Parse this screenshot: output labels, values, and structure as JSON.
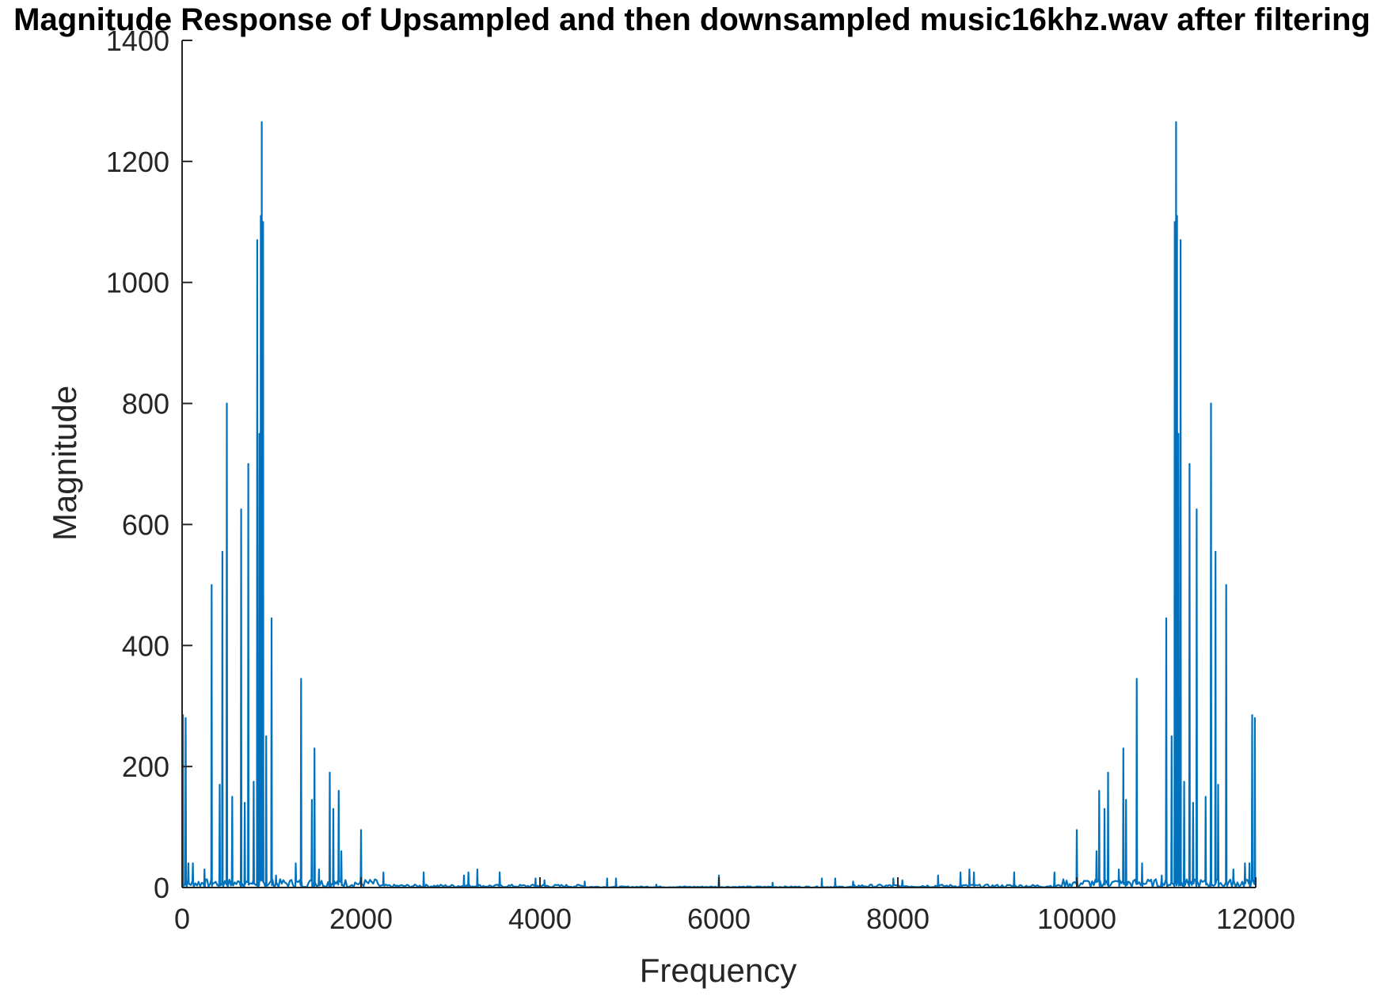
{
  "chart_data": {
    "type": "line",
    "title": "Magnitude Response of Upsampled and then downsampled music16khz.wav after filtering",
    "xlabel": "Frequency",
    "ylabel": "Magnitude",
    "xlim": [
      0,
      12000
    ],
    "ylim": [
      0,
      1400
    ],
    "xticks": [
      0,
      2000,
      4000,
      6000,
      8000,
      10000,
      12000
    ],
    "xtick_labels": [
      "0",
      "2000",
      "4000",
      "6000",
      "8000",
      "10000",
      "12000"
    ],
    "yticks": [
      0,
      200,
      400,
      600,
      800,
      1000,
      1200,
      1400
    ],
    "ytick_labels": [
      "0",
      "200",
      "400",
      "600",
      "800",
      "1000",
      "1200",
      "1400"
    ],
    "grid": false,
    "legend": "none",
    "line_color": "#0072BD",
    "axis_color": "#262626",
    "series": [
      {
        "peaks": [
          [
            10,
            285
          ],
          [
            40,
            280
          ],
          [
            70,
            40
          ],
          [
            120,
            40
          ],
          [
            250,
            30
          ],
          [
            330,
            500
          ],
          [
            420,
            170
          ],
          [
            450,
            555
          ],
          [
            500,
            800
          ],
          [
            560,
            150
          ],
          [
            660,
            625
          ],
          [
            700,
            140
          ],
          [
            740,
            700
          ],
          [
            800,
            175
          ],
          [
            840,
            1070
          ],
          [
            865,
            750
          ],
          [
            880,
            1110
          ],
          [
            890,
            1265
          ],
          [
            905,
            1100
          ],
          [
            940,
            250
          ],
          [
            1000,
            445
          ],
          [
            1050,
            20
          ],
          [
            1270,
            40
          ],
          [
            1330,
            345
          ],
          [
            1450,
            145
          ],
          [
            1480,
            230
          ],
          [
            1530,
            30
          ],
          [
            1650,
            190
          ],
          [
            1690,
            130
          ],
          [
            1750,
            160
          ],
          [
            1780,
            60
          ],
          [
            2000,
            95
          ],
          [
            2250,
            25
          ],
          [
            2700,
            25
          ],
          [
            3150,
            20
          ],
          [
            3200,
            25
          ],
          [
            3300,
            30
          ],
          [
            3550,
            25
          ],
          [
            3950,
            15
          ],
          [
            4050,
            12
          ],
          [
            4500,
            10
          ],
          [
            4750,
            15
          ],
          [
            4850,
            15
          ],
          [
            5300,
            5
          ],
          [
            6000,
            20
          ],
          [
            6600,
            8
          ],
          [
            7150,
            15
          ],
          [
            7300,
            15
          ],
          [
            7500,
            10
          ],
          [
            7950,
            15
          ],
          [
            8050,
            12
          ],
          [
            8450,
            20
          ],
          [
            8700,
            25
          ],
          [
            8800,
            30
          ],
          [
            8850,
            25
          ],
          [
            9300,
            25
          ],
          [
            9750,
            25
          ],
          [
            10000,
            95
          ],
          [
            10220,
            60
          ],
          [
            10250,
            160
          ],
          [
            10310,
            130
          ],
          [
            10350,
            190
          ],
          [
            10470,
            30
          ],
          [
            10520,
            230
          ],
          [
            10550,
            145
          ],
          [
            10670,
            345
          ],
          [
            10730,
            40
          ],
          [
            10950,
            20
          ],
          [
            11000,
            445
          ],
          [
            11060,
            250
          ],
          [
            11095,
            1100
          ],
          [
            11110,
            1265
          ],
          [
            11120,
            1110
          ],
          [
            11135,
            750
          ],
          [
            11160,
            1070
          ],
          [
            11200,
            175
          ],
          [
            11260,
            700
          ],
          [
            11300,
            140
          ],
          [
            11340,
            625
          ],
          [
            11440,
            150
          ],
          [
            11500,
            800
          ],
          [
            11550,
            555
          ],
          [
            11580,
            170
          ],
          [
            11670,
            500
          ],
          [
            11750,
            30
          ],
          [
            11880,
            40
          ],
          [
            11930,
            40
          ],
          [
            11960,
            285
          ],
          [
            11990,
            280
          ]
        ]
      }
    ]
  }
}
